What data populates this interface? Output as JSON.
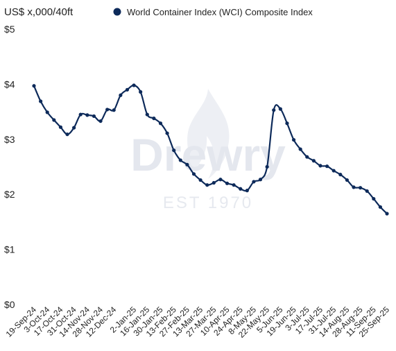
{
  "watermark": {
    "brand": "Drewry",
    "established": "EST 1970"
  },
  "colors": {
    "series": "#0d2a5a",
    "text": "#1f1f1f",
    "watermark": "#e4e7ee"
  },
  "chart_data": {
    "type": "line",
    "unit_label": "US$ x,000/40ft",
    "title": "",
    "xlabel": "",
    "ylabel": "US$ x,000/40ft",
    "legend_position": "top",
    "grid": false,
    "ylim": [
      0,
      5
    ],
    "y_ticks": [
      0,
      1,
      2,
      3,
      4,
      5
    ],
    "y_tick_labels": [
      "$0",
      "$1",
      "$2",
      "$3",
      "$4",
      "$5"
    ],
    "x_tick_labels": [
      "19-Sep-24",
      "3-Oct-24",
      "17-Oct-24",
      "31-Oct-24",
      "14-Nov-24",
      "28-Nov-24",
      "12-Dec-24",
      "2-Jan-25",
      "16-Jan-25",
      "30-Jan-25",
      "13-Feb-25",
      "27-Feb-25",
      "13-Mar-25",
      "27-Mar-25",
      "10-Apr-25",
      "24-Apr-25",
      "8-May-25",
      "22-May-25",
      "5-Jun-25",
      "19-Jun-25",
      "3-Jul-25",
      "17-Jul-25",
      "31-Jul-25",
      "14-Aug-25",
      "28-Aug-25",
      "11-Sep-25",
      "25-Sep-25"
    ],
    "series": [
      {
        "name": "World Container Index (WCI) Composite Index",
        "x": [
          "19-Sep-24",
          "26-Sep-24",
          "3-Oct-24",
          "10-Oct-24",
          "17-Oct-24",
          "24-Oct-24",
          "31-Oct-24",
          "7-Nov-24",
          "14-Nov-24",
          "21-Nov-24",
          "28-Nov-24",
          "5-Dec-24",
          "12-Dec-24",
          "19-Dec-24",
          "26-Dec-24",
          "2-Jan-25",
          "9-Jan-25",
          "16-Jan-25",
          "23-Jan-25",
          "30-Jan-25",
          "6-Feb-25",
          "13-Feb-25",
          "20-Feb-25",
          "27-Feb-25",
          "6-Mar-25",
          "13-Mar-25",
          "20-Mar-25",
          "27-Mar-25",
          "3-Apr-25",
          "10-Apr-25",
          "17-Apr-25",
          "24-Apr-25",
          "1-May-25",
          "8-May-25",
          "15-May-25",
          "22-May-25",
          "29-May-25",
          "5-Jun-25",
          "12-Jun-25",
          "19-Jun-25",
          "26-Jun-25",
          "3-Jul-25",
          "10-Jul-25",
          "17-Jul-25",
          "24-Jul-25",
          "31-Jul-25",
          "7-Aug-25",
          "14-Aug-25",
          "21-Aug-25",
          "28-Aug-25",
          "4-Sep-25",
          "11-Sep-25",
          "18-Sep-25",
          "25-Sep-25"
        ],
        "values": [
          3.97,
          3.69,
          3.49,
          3.35,
          3.22,
          3.09,
          3.21,
          3.45,
          3.44,
          3.42,
          3.33,
          3.54,
          3.53,
          3.8,
          3.9,
          3.98,
          3.86,
          3.45,
          3.38,
          3.29,
          3.11,
          2.8,
          2.62,
          2.54,
          2.37,
          2.26,
          2.17,
          2.21,
          2.27,
          2.2,
          2.17,
          2.1,
          2.07,
          2.23,
          2.27,
          2.5,
          3.53,
          3.55,
          3.29,
          2.99,
          2.82,
          2.68,
          2.61,
          2.52,
          2.51,
          2.43,
          2.36,
          2.26,
          2.13,
          2.12,
          2.06,
          1.92,
          1.77,
          1.65
        ]
      }
    ]
  }
}
